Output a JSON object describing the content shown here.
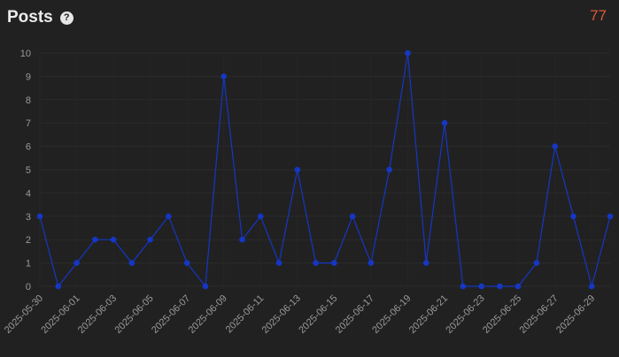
{
  "header": {
    "title": "Posts",
    "help_icon": "?",
    "total": "77",
    "total_color": "#e0583a"
  },
  "chart_data": {
    "type": "line",
    "title": "Posts",
    "xlabel": "",
    "ylabel": "",
    "ylim": [
      0,
      10
    ],
    "yticks": [
      "0",
      "1",
      "2",
      "3",
      "4",
      "5",
      "6",
      "7",
      "8",
      "9",
      "10"
    ],
    "grid": true,
    "color": "#1537c4",
    "x": [
      "2025-05-30",
      "2025-05-31",
      "2025-06-01",
      "2025-06-02",
      "2025-06-03",
      "2025-06-04",
      "2025-06-05",
      "2025-06-06",
      "2025-06-07",
      "2025-06-08",
      "2025-06-09",
      "2025-06-10",
      "2025-06-11",
      "2025-06-12",
      "2025-06-13",
      "2025-06-14",
      "2025-06-15",
      "2025-06-16",
      "2025-06-17",
      "2025-06-18",
      "2025-06-19",
      "2025-06-20",
      "2025-06-21",
      "2025-06-22",
      "2025-06-23",
      "2025-06-24",
      "2025-06-25",
      "2025-06-26",
      "2025-06-27",
      "2025-06-28",
      "2025-06-29",
      "2025-06-30"
    ],
    "values": [
      3,
      0,
      1,
      2,
      2,
      1,
      2,
      3,
      1,
      0,
      9,
      2,
      3,
      1,
      5,
      1,
      1,
      3,
      1,
      5,
      10,
      1,
      7,
      0,
      0,
      0,
      0,
      1,
      6,
      3,
      0,
      3
    ],
    "x_tick_labels": [
      "2025-05-30",
      "2025-06-01",
      "2025-06-03",
      "2025-06-05",
      "2025-06-07",
      "2025-06-09",
      "2025-06-11",
      "2025-06-13",
      "2025-06-15",
      "2025-06-17",
      "2025-06-19",
      "2025-06-21",
      "2025-06-23",
      "2025-06-25",
      "2025-06-27",
      "2025-06-29"
    ]
  }
}
